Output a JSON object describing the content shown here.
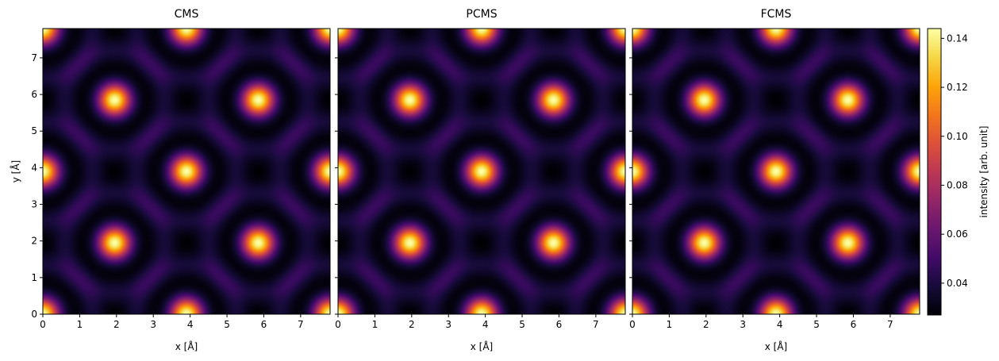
{
  "chart_data": {
    "type": "heatmap",
    "panels": [
      {
        "title": "CMS",
        "xlabel": "x [Å]",
        "ylabel": "y [Å]"
      },
      {
        "title": "PCMS",
        "xlabel": "x [Å]",
        "ylabel": ""
      },
      {
        "title": "FCMS",
        "xlabel": "x [Å]",
        "ylabel": ""
      }
    ],
    "xlim": [
      0,
      7.8
    ],
    "ylim": [
      0,
      7.8
    ],
    "x_ticks": [
      0,
      1,
      2,
      3,
      4,
      5,
      6,
      7
    ],
    "y_ticks": [
      0,
      1,
      2,
      3,
      4,
      5,
      6,
      7
    ],
    "peak_positions": [
      [
        1.95,
        1.95
      ],
      [
        5.85,
        1.95
      ],
      [
        1.95,
        5.85
      ],
      [
        5.85,
        5.85
      ],
      [
        3.9,
        3.9
      ]
    ],
    "edge_peak_positions": [
      [
        0,
        0
      ],
      [
        3.9,
        0
      ],
      [
        7.8,
        0
      ],
      [
        0,
        3.9
      ],
      [
        7.8,
        3.9
      ],
      [
        0,
        7.8
      ],
      [
        3.9,
        7.8
      ],
      [
        7.8,
        7.8
      ]
    ],
    "value_range": [
      0.027,
      0.144
    ],
    "colormap": "inferno",
    "colorbar": {
      "label": "intensity [arb. unit]",
      "ticks": [
        0.04,
        0.06,
        0.08,
        0.1,
        0.12,
        0.14
      ],
      "tick_labels": [
        "0.04",
        "0.06",
        "0.08",
        "0.10",
        "0.12",
        "0.14"
      ]
    }
  }
}
